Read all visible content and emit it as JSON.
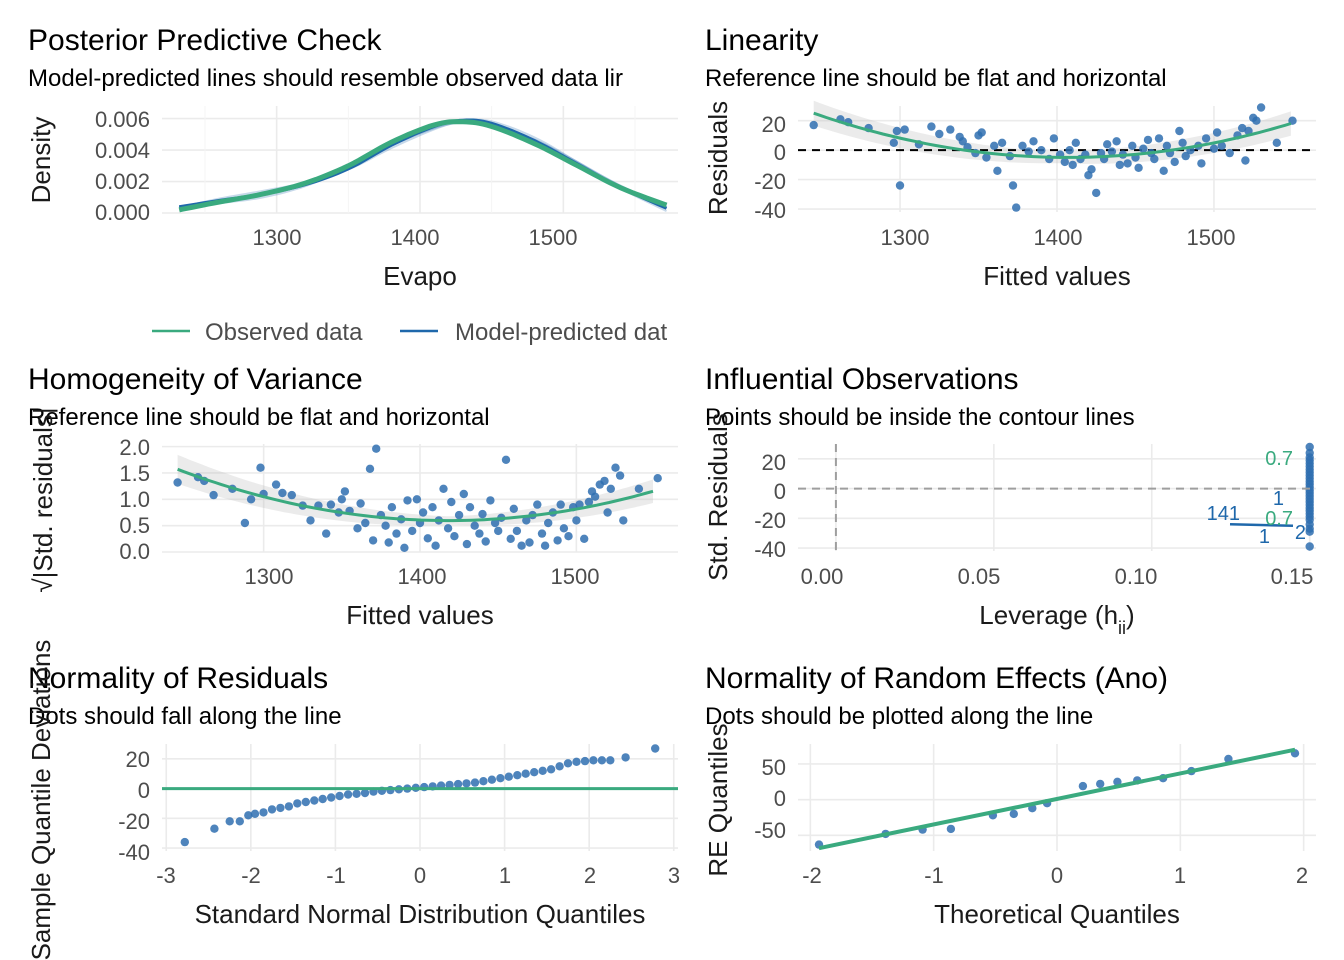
{
  "colors": {
    "observed": "#3aaa7f",
    "predicted": "#1f68ab",
    "points": "#2f6fb0",
    "ref_line": "#000000",
    "tick": "#4d4d4d",
    "grid": "#ebebeb"
  },
  "panels": {
    "ppc": {
      "title": "Posterior Predictive Check",
      "subtitle": "Model-predicted lines should resemble observed data lir",
      "xlabel": "Evapo",
      "ylabel": "Density",
      "legend_observed": "Observed data",
      "legend_predicted": "Model-predicted dat",
      "xticks": [
        "1300",
        "1400",
        "1500"
      ],
      "yticks": [
        "0.000",
        "0.002",
        "0.004",
        "0.006"
      ]
    },
    "linearity": {
      "title": "Linearity",
      "subtitle": "Reference line should be flat and horizontal",
      "xlabel": "Fitted values",
      "ylabel": "Residuals",
      "xticks": [
        "1300",
        "1400",
        "1500"
      ],
      "yticks": [
        "-40",
        "-20",
        "0",
        "20"
      ]
    },
    "homogeneity": {
      "title": "Homogeneity of Variance",
      "subtitle": "Reference line should be flat and horizontal",
      "xlabel": "Fitted values",
      "ylabel": "√|Std. residuals|",
      "xticks": [
        "1300",
        "1400",
        "1500"
      ],
      "yticks": [
        "0.0",
        "0.5",
        "1.0",
        "1.5",
        "2.0"
      ]
    },
    "influential": {
      "title": "Influential Observations",
      "subtitle": "Points should be inside the contour lines",
      "xlabel": "Leverage (h",
      "xlabel_sub": "ii",
      "xlabel_end": ")",
      "ylabel": "Std. Residuals",
      "xticks": [
        "0.00",
        "0.05",
        "0.10",
        "0.15"
      ],
      "yticks": [
        "-40",
        "-20",
        "0",
        "20"
      ],
      "annotations": [
        "0.7",
        "141",
        "0.7",
        "1",
        "1",
        "2"
      ]
    },
    "qq_resid": {
      "title": "Normality of Residuals",
      "subtitle": "Dots should fall along the line",
      "xlabel": "Standard Normal Distribution Quantiles",
      "ylabel": "Sample Quantile Deviations",
      "xticks": [
        "-3",
        "-2",
        "-1",
        "0",
        "1",
        "2",
        "3"
      ],
      "yticks": [
        "-40",
        "-20",
        "0",
        "20"
      ]
    },
    "qq_re": {
      "title": "Normality of Random Effects (Ano)",
      "subtitle": "Dots should be plotted along the line",
      "xlabel": "Theoretical Quantiles",
      "ylabel": "RE Quantiles",
      "xticks": [
        "-2",
        "-1",
        "0",
        "1",
        "2"
      ],
      "yticks": [
        "-50",
        "0",
        "50"
      ]
    }
  },
  "chart_data": [
    {
      "type": "line",
      "title": "Posterior Predictive Check",
      "xlabel": "Evapo",
      "ylabel": "Density",
      "xlim": [
        1220,
        1580
      ],
      "ylim": [
        0,
        0.0068
      ],
      "series": [
        {
          "name": "Observed data",
          "x": [
            1232,
            1260,
            1290,
            1320,
            1350,
            1380,
            1410,
            1430,
            1450,
            1480,
            1510,
            1540,
            1572
          ],
          "y": [
            0.0002,
            0.0007,
            0.0012,
            0.0019,
            0.003,
            0.0045,
            0.0056,
            0.0058,
            0.0055,
            0.0044,
            0.003,
            0.0016,
            0.0005
          ]
        },
        {
          "name": "Model-predicted dat",
          "x": [
            1232,
            1260,
            1290,
            1320,
            1350,
            1380,
            1410,
            1430,
            1450,
            1480,
            1510,
            1540,
            1572
          ],
          "y": [
            0.0004,
            0.0008,
            0.0012,
            0.0018,
            0.0028,
            0.0043,
            0.0055,
            0.0059,
            0.0057,
            0.0046,
            0.0031,
            0.0016,
            0.0003
          ]
        }
      ]
    },
    {
      "type": "scatter",
      "title": "Linearity",
      "xlabel": "Fitted values",
      "ylabel": "Residuals",
      "xlim": [
        1235,
        1565
      ],
      "ylim": [
        -42,
        30
      ],
      "points": [
        [
          1245,
          17
        ],
        [
          1262,
          21
        ],
        [
          1267,
          19
        ],
        [
          1280,
          15
        ],
        [
          1296,
          5
        ],
        [
          1298,
          13
        ],
        [
          1300,
          -24
        ],
        [
          1303,
          14
        ],
        [
          1312,
          4
        ],
        [
          1320,
          16
        ],
        [
          1325,
          11
        ],
        [
          1332,
          14
        ],
        [
          1338,
          9
        ],
        [
          1340,
          6
        ],
        [
          1343,
          2
        ],
        [
          1348,
          -2
        ],
        [
          1350,
          10
        ],
        [
          1352,
          12
        ],
        [
          1355,
          -5
        ],
        [
          1360,
          3
        ],
        [
          1362,
          -14
        ],
        [
          1365,
          5
        ],
        [
          1370,
          -4
        ],
        [
          1372,
          -24
        ],
        [
          1374,
          -39
        ],
        [
          1378,
          3
        ],
        [
          1382,
          -1
        ],
        [
          1385,
          6
        ],
        [
          1390,
          0
        ],
        [
          1395,
          -6
        ],
        [
          1398,
          8
        ],
        [
          1402,
          -3
        ],
        [
          1405,
          -8
        ],
        [
          1408,
          0
        ],
        [
          1410,
          -10
        ],
        [
          1412,
          5
        ],
        [
          1415,
          -6
        ],
        [
          1418,
          -3
        ],
        [
          1420,
          -17
        ],
        [
          1422,
          -13
        ],
        [
          1425,
          -29
        ],
        [
          1428,
          -2
        ],
        [
          1430,
          -6
        ],
        [
          1432,
          4
        ],
        [
          1435,
          -1
        ],
        [
          1438,
          6
        ],
        [
          1440,
          -10
        ],
        [
          1442,
          -3
        ],
        [
          1445,
          -9
        ],
        [
          1448,
          3
        ],
        [
          1450,
          -5
        ],
        [
          1452,
          -12
        ],
        [
          1455,
          1
        ],
        [
          1458,
          7
        ],
        [
          1460,
          -2
        ],
        [
          1462,
          -6
        ],
        [
          1465,
          8
        ],
        [
          1468,
          -14
        ],
        [
          1470,
          3
        ],
        [
          1472,
          -2
        ],
        [
          1475,
          -8
        ],
        [
          1478,
          13
        ],
        [
          1480,
          5
        ],
        [
          1482,
          -4
        ],
        [
          1485,
          0
        ],
        [
          1490,
          3
        ],
        [
          1492,
          -9
        ],
        [
          1495,
          8
        ],
        [
          1500,
          1
        ],
        [
          1502,
          12
        ],
        [
          1505,
          3
        ],
        [
          1510,
          -2
        ],
        [
          1515,
          10
        ],
        [
          1518,
          15
        ],
        [
          1520,
          -7
        ],
        [
          1522,
          13
        ],
        [
          1525,
          22
        ],
        [
          1527,
          20
        ],
        [
          1530,
          29
        ],
        [
          1540,
          5
        ],
        [
          1550,
          20
        ]
      ]
    },
    {
      "type": "scatter",
      "title": "Homogeneity of Variance",
      "xlabel": "Fitted values",
      "ylabel": "√|Std. residuals|",
      "xlim": [
        1235,
        1565
      ],
      "ylim": [
        0,
        2.05
      ],
      "points": [
        [
          1245,
          1.32
        ],
        [
          1258,
          1.42
        ],
        [
          1262,
          1.35
        ],
        [
          1268,
          1.08
        ],
        [
          1280,
          1.2
        ],
        [
          1288,
          0.55
        ],
        [
          1292,
          1.0
        ],
        [
          1298,
          1.6
        ],
        [
          1300,
          1.1
        ],
        [
          1308,
          1.28
        ],
        [
          1312,
          1.12
        ],
        [
          1318,
          1.08
        ],
        [
          1325,
          0.88
        ],
        [
          1330,
          0.6
        ],
        [
          1335,
          0.88
        ],
        [
          1340,
          0.35
        ],
        [
          1343,
          0.9
        ],
        [
          1348,
          0.75
        ],
        [
          1350,
          1.0
        ],
        [
          1352,
          1.15
        ],
        [
          1355,
          0.78
        ],
        [
          1360,
          0.45
        ],
        [
          1362,
          0.92
        ],
        [
          1365,
          0.55
        ],
        [
          1368,
          1.58
        ],
        [
          1370,
          0.22
        ],
        [
          1372,
          1.96
        ],
        [
          1375,
          0.7
        ],
        [
          1378,
          0.5
        ],
        [
          1380,
          0.18
        ],
        [
          1382,
          0.85
        ],
        [
          1385,
          0.35
        ],
        [
          1388,
          0.62
        ],
        [
          1390,
          0.08
        ],
        [
          1392,
          0.98
        ],
        [
          1395,
          0.4
        ],
        [
          1398,
          1.0
        ],
        [
          1400,
          0.55
        ],
        [
          1402,
          0.75
        ],
        [
          1405,
          0.26
        ],
        [
          1408,
          0.85
        ],
        [
          1410,
          0.12
        ],
        [
          1412,
          0.6
        ],
        [
          1415,
          1.2
        ],
        [
          1418,
          0.45
        ],
        [
          1420,
          0.95
        ],
        [
          1422,
          0.3
        ],
        [
          1425,
          0.7
        ],
        [
          1428,
          1.1
        ],
        [
          1430,
          0.15
        ],
        [
          1432,
          0.85
        ],
        [
          1435,
          0.5
        ],
        [
          1438,
          0.35
        ],
        [
          1440,
          0.72
        ],
        [
          1442,
          0.2
        ],
        [
          1445,
          0.98
        ],
        [
          1448,
          0.55
        ],
        [
          1450,
          0.4
        ],
        [
          1452,
          0.65
        ],
        [
          1455,
          1.75
        ],
        [
          1458,
          0.25
        ],
        [
          1460,
          0.82
        ],
        [
          1462,
          0.4
        ],
        [
          1465,
          0.12
        ],
        [
          1468,
          0.6
        ],
        [
          1470,
          0.18
        ],
        [
          1472,
          0.7
        ],
        [
          1475,
          0.9
        ],
        [
          1478,
          0.35
        ],
        [
          1480,
          0.12
        ],
        [
          1482,
          0.55
        ],
        [
          1485,
          0.75
        ],
        [
          1488,
          0.22
        ],
        [
          1490,
          0.9
        ],
        [
          1492,
          0.45
        ],
        [
          1495,
          0.3
        ],
        [
          1498,
          0.85
        ],
        [
          1500,
          0.6
        ],
        [
          1502,
          0.9
        ],
        [
          1505,
          0.25
        ],
        [
          1508,
          0.95
        ],
        [
          1510,
          1.15
        ],
        [
          1512,
          1.05
        ],
        [
          1515,
          1.28
        ],
        [
          1518,
          1.35
        ],
        [
          1520,
          0.75
        ],
        [
          1522,
          1.2
        ],
        [
          1525,
          1.6
        ],
        [
          1528,
          1.45
        ],
        [
          1530,
          0.6
        ],
        [
          1540,
          1.2
        ],
        [
          1552,
          1.4
        ]
      ]
    },
    {
      "type": "scatter",
      "title": "Influential Observations",
      "xlabel": "Leverage (hii)",
      "ylabel": "Std. Residuals",
      "xlim": [
        -0.012,
        0.152
      ],
      "ylim": [
        -42,
        30
      ],
      "points": [
        [
          0.15,
          28
        ],
        [
          0.15,
          24
        ],
        [
          0.15,
          21
        ],
        [
          0.15,
          19
        ],
        [
          0.15,
          17
        ],
        [
          0.15,
          15
        ],
        [
          0.15,
          13
        ],
        [
          0.15,
          11
        ],
        [
          0.15,
          9
        ],
        [
          0.15,
          7
        ],
        [
          0.15,
          5
        ],
        [
          0.15,
          3
        ],
        [
          0.15,
          1
        ],
        [
          0.15,
          -1
        ],
        [
          0.15,
          -3
        ],
        [
          0.15,
          -5
        ],
        [
          0.15,
          -7
        ],
        [
          0.15,
          -9
        ],
        [
          0.15,
          -11
        ],
        [
          0.15,
          -13
        ],
        [
          0.15,
          -15
        ],
        [
          0.15,
          -17
        ],
        [
          0.15,
          -19
        ],
        [
          0.15,
          -21
        ],
        [
          0.15,
          -24
        ],
        [
          0.15,
          -27
        ],
        [
          0.15,
          -29
        ],
        [
          0.15,
          -39
        ]
      ]
    },
    {
      "type": "scatter",
      "title": "Normality of Residuals",
      "xlabel": "Standard Normal Distribution Quantiles",
      "ylabel": "Sample Quantile Deviations",
      "xlim": [
        -3.05,
        3.05
      ],
      "ylim": [
        -42,
        30
      ],
      "points": [
        [
          -2.78,
          -36
        ],
        [
          -2.43,
          -27
        ],
        [
          -2.25,
          -22
        ],
        [
          -2.13,
          -22
        ],
        [
          -2.03,
          -18
        ],
        [
          -1.95,
          -17
        ],
        [
          -1.85,
          -16
        ],
        [
          -1.75,
          -14
        ],
        [
          -1.65,
          -13
        ],
        [
          -1.55,
          -12
        ],
        [
          -1.45,
          -10
        ],
        [
          -1.35,
          -9
        ],
        [
          -1.25,
          -8
        ],
        [
          -1.15,
          -7
        ],
        [
          -1.05,
          -6
        ],
        [
          -0.95,
          -5
        ],
        [
          -0.85,
          -4
        ],
        [
          -0.75,
          -3.5
        ],
        [
          -0.65,
          -3
        ],
        [
          -0.55,
          -2
        ],
        [
          -0.45,
          -1.5
        ],
        [
          -0.35,
          -1
        ],
        [
          -0.25,
          -0.5
        ],
        [
          -0.15,
          0
        ],
        [
          -0.05,
          0.5
        ],
        [
          0.05,
          1
        ],
        [
          0.15,
          1.5
        ],
        [
          0.25,
          2
        ],
        [
          0.35,
          2.5
        ],
        [
          0.45,
          3
        ],
        [
          0.55,
          3.5
        ],
        [
          0.65,
          4
        ],
        [
          0.75,
          5
        ],
        [
          0.85,
          6
        ],
        [
          0.95,
          7
        ],
        [
          1.05,
          8
        ],
        [
          1.15,
          9
        ],
        [
          1.25,
          10
        ],
        [
          1.35,
          11
        ],
        [
          1.45,
          12
        ],
        [
          1.55,
          13
        ],
        [
          1.65,
          15
        ],
        [
          1.75,
          17
        ],
        [
          1.85,
          18
        ],
        [
          1.95,
          18.5
        ],
        [
          2.05,
          19
        ],
        [
          2.15,
          19
        ],
        [
          2.25,
          19
        ],
        [
          2.43,
          21
        ],
        [
          2.78,
          27
        ]
      ]
    },
    {
      "type": "scatter",
      "title": "Normality of Random Effects (Ano)",
      "xlabel": "Theoretical Quantiles",
      "ylabel": "RE Quantiles",
      "xlim": [
        -2.1,
        2.1
      ],
      "ylim": [
        -72,
        78
      ],
      "points": [
        [
          -1.93,
          -63
        ],
        [
          -1.39,
          -48
        ],
        [
          -1.09,
          -42
        ],
        [
          -0.86,
          -41
        ],
        [
          -0.52,
          -22
        ],
        [
          -0.35,
          -20
        ],
        [
          -0.2,
          -12
        ],
        [
          -0.08,
          -5
        ],
        [
          0.21,
          19
        ],
        [
          0.35,
          22
        ],
        [
          0.49,
          25
        ],
        [
          0.65,
          27
        ],
        [
          0.86,
          30
        ],
        [
          1.09,
          40
        ],
        [
          1.39,
          57
        ],
        [
          1.93,
          65
        ]
      ],
      "line": {
        "x": [
          -1.93,
          1.93
        ],
        "y": [
          -68,
          70
        ]
      }
    }
  ]
}
